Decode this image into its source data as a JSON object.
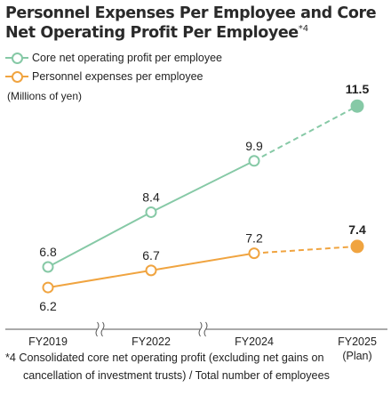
{
  "title": {
    "line1": "Personnel Expenses Per Employee and Core",
    "line2": "Net Operating Profit Per Employee",
    "sup": "*4"
  },
  "unit_label": "(Millions of yen)",
  "footnote": {
    "line1": "*4 Consolidated core net operating profit (excluding net gains on",
    "line2": "cancellation of investment trusts) / Total number of employees"
  },
  "colors": {
    "green": "#86c9a6",
    "orange": "#f0a440",
    "axis": "#555555"
  },
  "chart_data": {
    "type": "line",
    "categories": [
      "FY2019",
      "FY2022",
      "FY2024",
      "FY2025"
    ],
    "category_sublabels": [
      "",
      "",
      "",
      "(Plan)"
    ],
    "axis_breaks_between": [
      [
        0,
        1
      ],
      [
        1,
        2
      ]
    ],
    "xlabel": "",
    "ylabel": "(Millions of yen)",
    "ylim": [
      5.5,
      12.0
    ],
    "grid": false,
    "legend_position": "top-left",
    "projected_segment_from_index": 2,
    "series": [
      {
        "name": "Core net operating profit per employee",
        "color": "#86c9a6",
        "values": [
          6.8,
          8.4,
          9.9,
          11.5
        ],
        "labels": [
          "6.8",
          "8.4",
          "9.9",
          "11.5"
        ],
        "bold_label_index": 3,
        "label_position": "above"
      },
      {
        "name": "Personnel expenses per employee",
        "color": "#f0a440",
        "values": [
          6.2,
          6.7,
          7.2,
          7.4
        ],
        "labels": [
          "6.2",
          "6.7",
          "7.2",
          "7.4"
        ],
        "bold_label_index": 3,
        "label_position": "mixed"
      }
    ]
  }
}
